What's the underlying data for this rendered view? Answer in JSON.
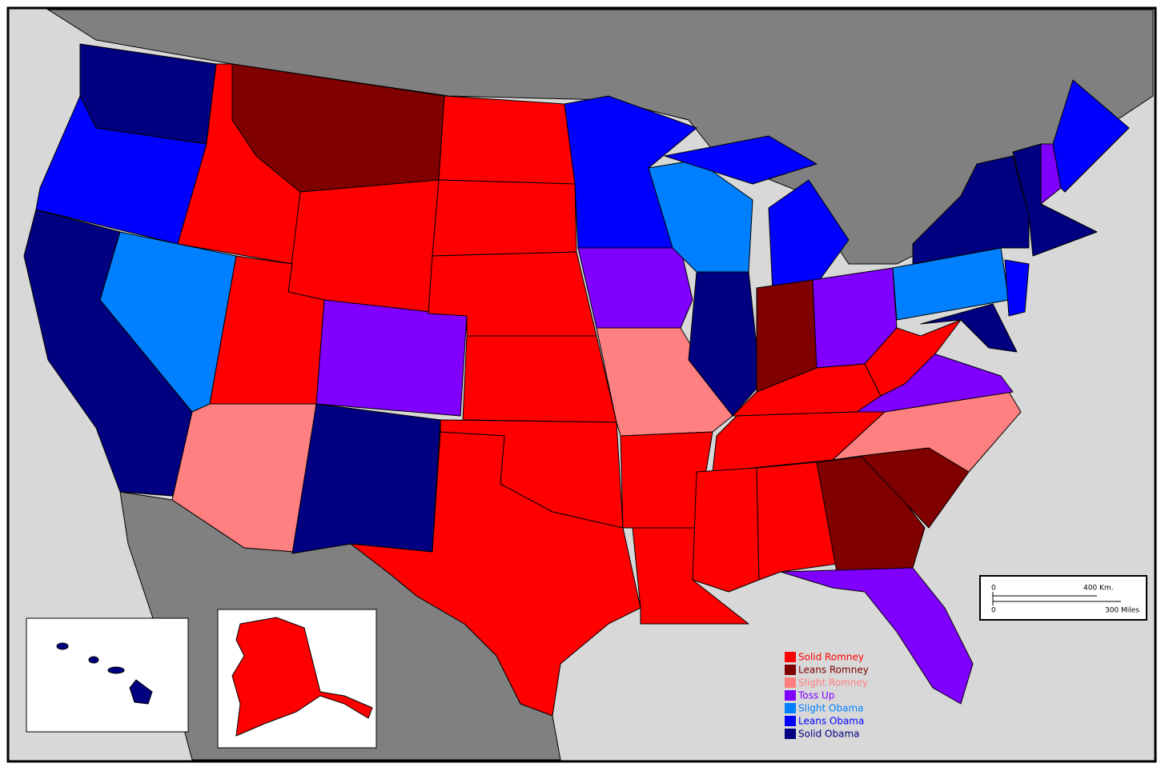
{
  "legend": [
    {
      "label": "Solid Romney",
      "color": "#ff0000"
    },
    {
      "label": "Leans Romney",
      "color": "#800000"
    },
    {
      "label": "Slight Romney",
      "color": "#ff8080"
    },
    {
      "label": "Toss Up",
      "color": "#8000ff"
    },
    {
      "label": "Slight Obama",
      "color": "#0080ff"
    },
    {
      "label": "Leans Obama",
      "color": "#0000ff"
    },
    {
      "label": "Solid Obama",
      "color": "#000080"
    }
  ],
  "scale": {
    "km_start": "0",
    "km_end": "400 Km.",
    "mi_start": "0",
    "mi_end": "300 Miles"
  }
}
